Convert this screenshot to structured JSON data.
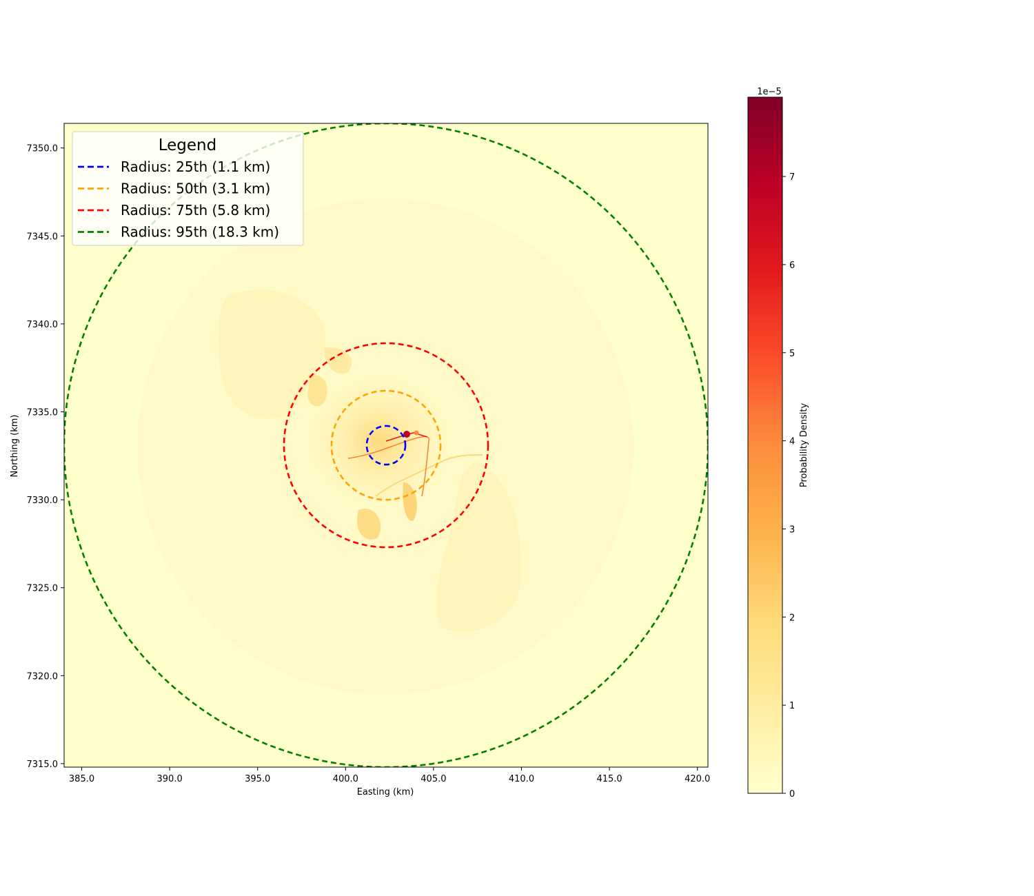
{
  "chart_data": {
    "type": "heatmap",
    "title": "",
    "xlabel": "Easting (km)",
    "ylabel": "Northing (km)",
    "xlim": [
      384.0,
      420.6
    ],
    "ylim": [
      7314.8,
      7351.4
    ],
    "xticks": [
      385.0,
      390.0,
      395.0,
      400.0,
      405.0,
      410.0,
      415.0,
      420.0
    ],
    "xtick_labels": [
      "385.0",
      "390.0",
      "395.0",
      "400.0",
      "405.0",
      "410.0",
      "415.0",
      "420.0"
    ],
    "yticks": [
      7315.0,
      7320.0,
      7325.0,
      7330.0,
      7335.0,
      7340.0,
      7345.0,
      7350.0
    ],
    "ytick_labels": [
      "7315.0",
      "7320.0",
      "7325.0",
      "7330.0",
      "7335.0",
      "7340.0",
      "7345.0",
      "7350.0"
    ],
    "grid": false,
    "center": {
      "x": 402.3,
      "y": 7333.1
    },
    "colormap": "YlOrRd",
    "colorbar": {
      "label": "Probability Density",
      "scale_label": "1e−5",
      "min": 0,
      "max": 7.9,
      "ticks": [
        0,
        1,
        2,
        3,
        4,
        5,
        6,
        7
      ],
      "tick_labels": [
        "0",
        "1",
        "2",
        "3",
        "4",
        "5",
        "6",
        "7"
      ],
      "colors": [
        "#ffffcc",
        "#ffeda0",
        "#fed976",
        "#feb24c",
        "#fd8d3c",
        "#fc4e2a",
        "#e31a1c",
        "#bd0026",
        "#800026"
      ]
    },
    "series": [
      {
        "name": "Radius: 25th (1.1 km)",
        "radius_km": 1.1,
        "color": "#0000ff"
      },
      {
        "name": "Radius: 50th (3.1 km)",
        "radius_km": 3.1,
        "color": "#ffa500"
      },
      {
        "name": "Radius: 75th (5.8 km)",
        "radius_km": 5.8,
        "color": "#ff0000"
      },
      {
        "name": "Radius: 95th (18.3 km)",
        "radius_km": 18.3,
        "color": "#008000"
      }
    ],
    "legend": {
      "title": "Legend",
      "placement": "upper-left"
    }
  }
}
